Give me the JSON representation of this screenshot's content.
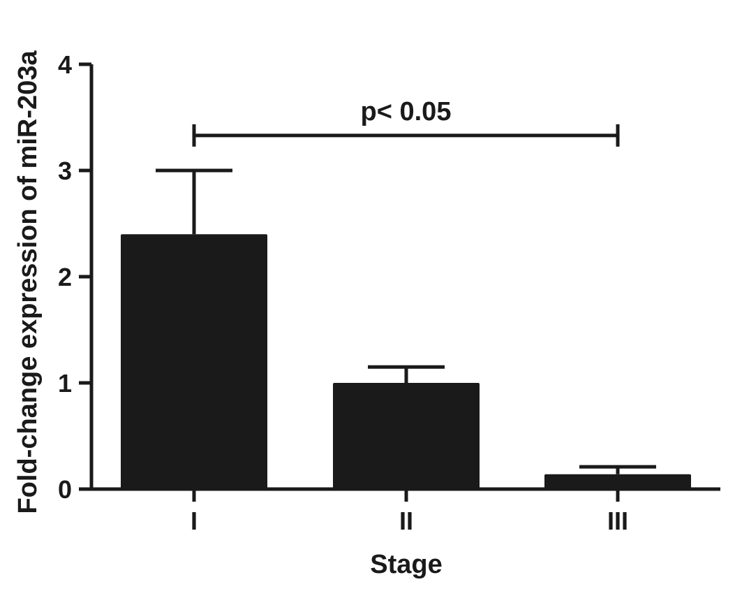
{
  "chart_data": {
    "type": "bar",
    "categories": [
      "I",
      "II",
      "III"
    ],
    "values": [
      2.4,
      1.0,
      0.14
    ],
    "error_upper": [
      3.0,
      1.15,
      0.21
    ],
    "xlabel": "Stage",
    "ylabel": "Fold-change expression of miR-203a",
    "ylim": [
      0,
      4
    ],
    "yticks": [
      "0",
      "1",
      "2",
      "3",
      "4"
    ],
    "grid": false,
    "legend": "none",
    "bar_color": "#1a1a1a",
    "annotations": [
      {
        "text": "p< 0.05",
        "from_category": "I",
        "to_category": "III",
        "y": 3.33
      }
    ]
  }
}
